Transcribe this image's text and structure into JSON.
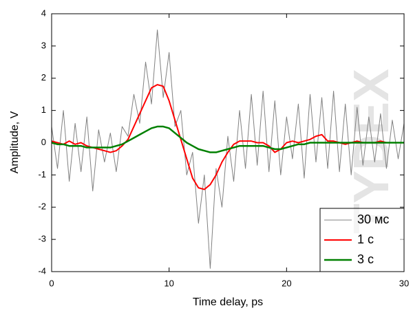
{
  "chart_data": {
    "type": "line",
    "xlabel": "Time delay, ps",
    "ylabel": "Amplitude, V",
    "watermark": "TYDEX",
    "x": [
      0,
      0.5,
      1,
      1.5,
      2,
      2.5,
      3,
      3.5,
      4,
      4.5,
      5,
      5.5,
      6,
      6.5,
      7,
      7.5,
      8,
      8.5,
      9,
      9.5,
      10,
      10.5,
      11,
      11.5,
      12,
      12.5,
      13,
      13.5,
      14,
      14.5,
      15,
      15.5,
      16,
      16.5,
      17,
      17.5,
      18,
      18.5,
      19,
      19.5,
      20,
      20.5,
      21,
      21.5,
      22,
      22.5,
      23,
      23.5,
      24,
      24.5,
      25,
      25.5,
      26,
      26.5,
      27,
      27.5,
      28,
      28.5,
      29,
      29.5,
      30
    ],
    "series": [
      {
        "name": "30 мс",
        "color": "#808080",
        "width": 1,
        "values": [
          0.5,
          -0.8,
          1.0,
          -1.2,
          0.6,
          -0.9,
          0.8,
          -1.5,
          0.4,
          -0.6,
          0.3,
          -0.9,
          0.5,
          0.2,
          1.5,
          0.6,
          2.5,
          1.2,
          3.5,
          1.4,
          2.8,
          0.5,
          1.0,
          -1.0,
          -0.3,
          -2.5,
          -1.0,
          -3.9,
          -0.8,
          -2.0,
          0.2,
          -1.2,
          1.0,
          -0.8,
          1.5,
          -0.7,
          1.6,
          -0.9,
          1.3,
          -1.0,
          0.8,
          -0.5,
          1.2,
          -1.1,
          1.5,
          -0.6,
          1.4,
          -0.8,
          1.6,
          -0.9,
          1.2,
          -1.0,
          1.1,
          -0.7,
          0.8,
          -0.6,
          0.9,
          -0.8,
          0.7,
          -0.5,
          0.6
        ]
      },
      {
        "name": "1 с",
        "color": "#ff0000",
        "width": 2,
        "values": [
          0.05,
          0.0,
          -0.05,
          0.05,
          -0.05,
          0.0,
          -0.1,
          -0.15,
          -0.2,
          -0.25,
          -0.3,
          -0.25,
          -0.1,
          0.1,
          0.5,
          0.9,
          1.3,
          1.7,
          1.8,
          1.75,
          1.3,
          0.7,
          0.1,
          -0.5,
          -1.1,
          -1.4,
          -1.45,
          -1.3,
          -1.0,
          -0.6,
          -0.3,
          -0.05,
          0.05,
          0.05,
          0.05,
          0.0,
          0.0,
          -0.1,
          -0.3,
          -0.2,
          0.0,
          0.05,
          0.0,
          0.05,
          0.1,
          0.2,
          0.25,
          0.05,
          0.05,
          0.0,
          -0.05,
          0.0,
          0.05,
          0.0,
          0.0,
          0.0,
          0.05,
          0.0,
          0.0,
          0.0,
          0.0
        ]
      },
      {
        "name": "3 с",
        "color": "#008000",
        "width": 2.5,
        "values": [
          0.0,
          -0.05,
          -0.05,
          -0.1,
          -0.1,
          -0.1,
          -0.15,
          -0.15,
          -0.15,
          -0.15,
          -0.15,
          -0.1,
          -0.05,
          0.05,
          0.15,
          0.25,
          0.35,
          0.45,
          0.5,
          0.5,
          0.45,
          0.3,
          0.15,
          0.0,
          -0.1,
          -0.2,
          -0.25,
          -0.3,
          -0.3,
          -0.25,
          -0.2,
          -0.15,
          -0.1,
          -0.1,
          -0.1,
          -0.1,
          -0.1,
          -0.15,
          -0.2,
          -0.2,
          -0.15,
          -0.1,
          -0.05,
          -0.05,
          0.0,
          0.0,
          0.0,
          0.0,
          0.0,
          0.0,
          0.0,
          0.0,
          0.0,
          0.0,
          0.0,
          0.0,
          0.0,
          0.0,
          0.0,
          0.0,
          0.0
        ]
      }
    ],
    "xlim": [
      0,
      30
    ],
    "xticks": [
      0,
      10,
      20,
      30
    ],
    "ylim": [
      -4,
      4
    ],
    "yticks": [
      -4,
      -3,
      -2,
      -1,
      0,
      1,
      2,
      3,
      4
    ],
    "grid": false,
    "legend": "lower right"
  }
}
